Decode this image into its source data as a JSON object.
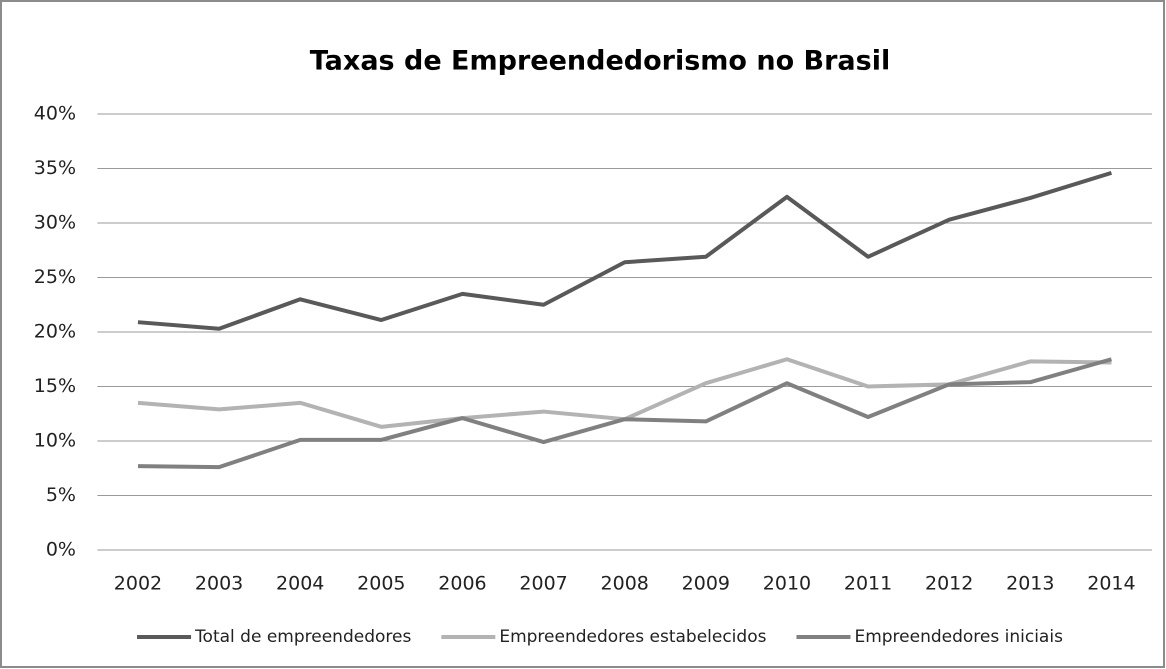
{
  "chart_data": {
    "type": "line",
    "title": "Taxas de Empreendedorismo no Brasil",
    "categories": [
      "2002",
      "2003",
      "2004",
      "2005",
      "2006",
      "2007",
      "2008",
      "2009",
      "2010",
      "2011",
      "2012",
      "2013",
      "2014"
    ],
    "series": [
      {
        "name": "Total de empreendedores",
        "color": "#595959",
        "values": [
          20.9,
          20.3,
          23.0,
          21.1,
          23.5,
          22.5,
          26.4,
          26.9,
          32.4,
          26.9,
          30.3,
          32.3,
          34.6
        ]
      },
      {
        "name": "Empreendedores estabelecidos",
        "color": "#b3b3b3",
        "values": [
          13.5,
          12.9,
          13.5,
          11.3,
          12.1,
          12.7,
          12.0,
          15.3,
          17.5,
          15.0,
          15.2,
          17.3,
          17.2
        ]
      },
      {
        "name": "Empreendedores iniciais",
        "color": "#808080",
        "values": [
          7.7,
          7.6,
          10.1,
          10.1,
          12.1,
          9.9,
          12.0,
          11.8,
          15.3,
          12.2,
          15.2,
          15.4,
          17.5
        ]
      }
    ],
    "ylim": [
      0,
      40
    ],
    "yticks": [
      {
        "value": 0,
        "label": "0%"
      },
      {
        "value": 5,
        "label": "5%"
      },
      {
        "value": 10,
        "label": "10%"
      },
      {
        "value": 15,
        "label": "15%"
      },
      {
        "value": 20,
        "label": "20%"
      },
      {
        "value": 25,
        "label": "25%"
      },
      {
        "value": 30,
        "label": "30%"
      },
      {
        "value": 35,
        "label": "35%"
      },
      {
        "value": 40,
        "label": "40%"
      }
    ],
    "grid": true,
    "legend": "bottom"
  }
}
